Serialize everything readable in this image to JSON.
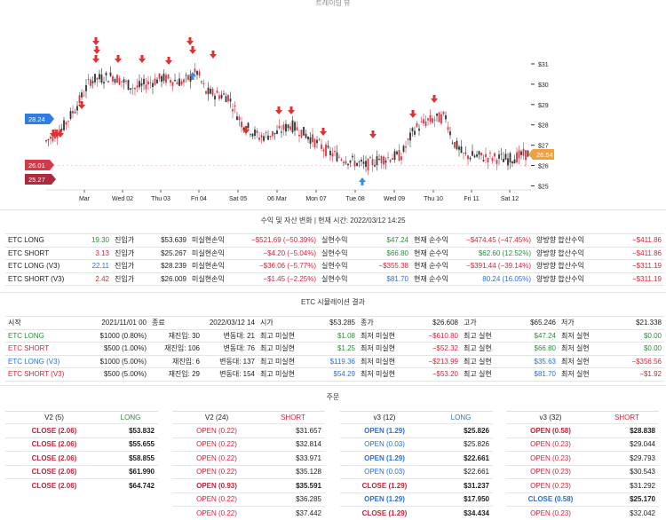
{
  "chart": {
    "title": "트레이딩 뷰",
    "price_ticks": [
      "$31",
      "$30",
      "$29",
      "$28",
      "$27",
      "$26",
      "$25"
    ],
    "date_ticks": [
      "Mar",
      "Wed 02",
      "Thu 03",
      "Fri 04",
      "Sat 05",
      "06 Mar",
      "Mon 07",
      "Tue 08",
      "Wed 09",
      "Thu 10",
      "Fri 11",
      "Sat 12"
    ],
    "badges": [
      {
        "label": "28.24",
        "color": "#2f7de1"
      },
      {
        "label": "26.01",
        "color": "#d43a4a"
      },
      {
        "label": "25.27",
        "color": "#b02a3e"
      },
      {
        "label": "26.54",
        "color": "#f0a040"
      }
    ],
    "up_color": "#333333",
    "down_color": "#d43a4a",
    "sell_marker_color": "#e03131",
    "buy_marker_color": "#3b8fe0"
  },
  "pnl": {
    "title": "수익 및 자산 변화 | 현재 시간: 2022/03/12 14:25",
    "rows": [
      {
        "name": "ETC LONG",
        "qty": "19.30",
        "qty_color": "green",
        "entry_label": "진입가",
        "entry": "$53.639",
        "unreal_label": "미실현손익",
        "unreal": "−$521.69 (−50.39%)",
        "unreal_color": "red",
        "real_label": "실현수익",
        "real": "$47.24",
        "real_color": "green",
        "net_label": "현재 순수익",
        "net": "−$474.45 (−47.45%)",
        "net_color": "red",
        "both_label": "양방향 합산수익",
        "both": "−$411.86",
        "both_color": "red"
      },
      {
        "name": "ETC SHORT",
        "qty": "3.13",
        "qty_color": "red",
        "entry_label": "진입가",
        "entry": "$25.267",
        "unreal_label": "미실현손익",
        "unreal": "−$4.20 (−5.04%)",
        "unreal_color": "red",
        "real_label": "실현수익",
        "real": "$66.80",
        "real_color": "green",
        "net_label": "현재 순수익",
        "net": "$62.60 (12.52%)",
        "net_color": "green",
        "both_label": "양방향 합산수익",
        "both": "−$411.86",
        "both_color": "red"
      },
      {
        "name": "ETC LONG (V3)",
        "qty": "22.11",
        "qty_color": "blue",
        "entry_label": "진입가",
        "entry": "$28.239",
        "unreal_label": "미실현손익",
        "unreal": "−$36.06 (−5.77%)",
        "unreal_color": "red",
        "real_label": "실현수익",
        "real": "−$355.38",
        "real_color": "red",
        "net_label": "현재 순수익",
        "net": "−$391.44 (−39.14%)",
        "net_color": "red",
        "both_label": "양방향 합산수익",
        "both": "−$311.19",
        "both_color": "red"
      },
      {
        "name": "ETC SHORT (V3)",
        "qty": "2.42",
        "qty_color": "red",
        "entry_label": "진입가",
        "entry": "$26.009",
        "unreal_label": "미실현손익",
        "unreal": "−$1.45 (−2.25%)",
        "unreal_color": "red",
        "real_label": "실현수익",
        "real": "$81.70",
        "real_color": "blue",
        "net_label": "현재 순수익",
        "net": "80.24 (16.05%)",
        "net_color": "blue",
        "both_label": "양방향 합산수익",
        "both": "−$311.19",
        "both_color": "red"
      }
    ]
  },
  "sim": {
    "title": "ETC 시뮬레이션 결과",
    "header": {
      "start_label": "시작",
      "start": "2021/11/01 00",
      "end_label": "종료",
      "end": "2022/03/12 14",
      "open_label": "시가",
      "open": "$53.285",
      "close_label": "종가",
      "close": "$26.608",
      "high_label": "고가",
      "high": "$65.246",
      "low_label": "저가",
      "low": "$21.338"
    },
    "rows": [
      {
        "name": "ETC LONG",
        "name_color": "green",
        "budget": "$1000 (0.80%)",
        "reentry": "재진입: 30",
        "change": "변동대: 21",
        "max_unreal_label": "최고 미실현",
        "max_unreal": "$1.08",
        "max_unreal_color": "green",
        "min_unreal_label": "최저 미실현",
        "min_unreal": "−$610.80",
        "min_unreal_color": "red",
        "max_real_label": "최고 실현",
        "max_real": "$47.24",
        "max_real_color": "green",
        "min_real_label": "최저 실현",
        "min_real": "$0.00",
        "min_real_color": "green"
      },
      {
        "name": "ETC SHORT",
        "name_color": "red",
        "budget": "$500 (1.00%)",
        "reentry": "재진입: 106",
        "change": "변동대: 76",
        "max_unreal_label": "최고 미실현",
        "max_unreal": "$1.25",
        "max_unreal_color": "green",
        "min_unreal_label": "최저 미실현",
        "min_unreal": "−$52.32",
        "min_unreal_color": "red",
        "max_real_label": "최고 실현",
        "max_real": "$66.80",
        "max_real_color": "green",
        "min_real_label": "최저 실현",
        "min_real": "$0.00",
        "min_real_color": "green"
      },
      {
        "name": "ETC LONG (V3)",
        "name_color": "blue",
        "budget": "$1000 (5.00%)",
        "reentry": "재진입: 6",
        "change": "변동대: 137",
        "max_unreal_label": "최고 미실현",
        "max_unreal": "$119.36",
        "max_unreal_color": "blue",
        "min_unreal_label": "최저 미실현",
        "min_unreal": "−$213.99",
        "min_unreal_color": "red",
        "max_real_label": "최고 실현",
        "max_real": "$35.63",
        "max_real_color": "blue",
        "min_real_label": "최저 실현",
        "min_real": "−$356.56",
        "min_real_color": "red"
      },
      {
        "name": "ETC SHORT (V3)",
        "name_color": "red",
        "budget": "$500 (5.00%)",
        "reentry": "재진입: 29",
        "change": "변동대: 154",
        "max_unreal_label": "최고 미실현",
        "max_unreal": "$54.29",
        "max_unreal_color": "blue",
        "min_unreal_label": "최저 미실현",
        "min_unreal": "−$53.20",
        "min_unreal_color": "red",
        "max_real_label": "최고 실현",
        "max_real": "$81.70",
        "max_real_color": "blue",
        "min_real_label": "최저 실현",
        "min_real": "−$1.92",
        "min_real_color": "red"
      }
    ]
  },
  "orders": {
    "title": "주문",
    "tables": [
      {
        "version": "V2 (5)",
        "side": "LONG",
        "side_color": "green",
        "rows": [
          {
            "action": "CLOSE (2.06)",
            "action_color": "darkred",
            "bold": true,
            "price": "$53.832",
            "price_bold": true
          },
          {
            "action": "CLOSE (2.06)",
            "action_color": "darkred",
            "bold": true,
            "price": "$55.655",
            "price_bold": true
          },
          {
            "action": "CLOSE (2.06)",
            "action_color": "darkred",
            "bold": true,
            "price": "$58.855",
            "price_bold": true
          },
          {
            "action": "CLOSE (2.06)",
            "action_color": "darkred",
            "bold": true,
            "price": "$61.990",
            "price_bold": true
          },
          {
            "action": "CLOSE (2.06)",
            "action_color": "darkred",
            "bold": true,
            "price": "$64.742",
            "price_bold": true
          }
        ]
      },
      {
        "version": "V2 (24)",
        "side": "SHORT",
        "side_color": "red",
        "rows": [
          {
            "action": "OPEN (0.22)",
            "action_color": "red",
            "bold": false,
            "price": "$31.657",
            "price_bold": false
          },
          {
            "action": "OPEN (0.22)",
            "action_color": "red",
            "bold": false,
            "price": "$32.814",
            "price_bold": false
          },
          {
            "action": "OPEN (0.22)",
            "action_color": "red",
            "bold": false,
            "price": "$33.971",
            "price_bold": false
          },
          {
            "action": "OPEN (0.22)",
            "action_color": "red",
            "bold": false,
            "price": "$35.128",
            "price_bold": false
          },
          {
            "action": "OPEN (0.93)",
            "action_color": "darkred",
            "bold": true,
            "price": "$35.591",
            "price_bold": true
          },
          {
            "action": "OPEN (0.22)",
            "action_color": "red",
            "bold": false,
            "price": "$36.285",
            "price_bold": false
          },
          {
            "action": "OPEN (0.22)",
            "action_color": "red",
            "bold": false,
            "price": "$37.442",
            "price_bold": false
          }
        ]
      },
      {
        "version": "v3 (12)",
        "side": "LONG",
        "side_color": "blue",
        "rows": [
          {
            "action": "OPEN (1.29)",
            "action_color": "blue",
            "bold": true,
            "price": "$25.826",
            "price_bold": true
          },
          {
            "action": "OPEN (0.03)",
            "action_color": "blue",
            "bold": false,
            "price": "$25.826",
            "price_bold": false
          },
          {
            "action": "OPEN (1.29)",
            "action_color": "blue",
            "bold": true,
            "price": "$22.661",
            "price_bold": true
          },
          {
            "action": "OPEN (0.03)",
            "action_color": "blue",
            "bold": false,
            "price": "$22.661",
            "price_bold": false
          },
          {
            "action": "CLOSE (1.29)",
            "action_color": "darkred",
            "bold": true,
            "price": "$31.237",
            "price_bold": true
          },
          {
            "action": "OPEN (1.29)",
            "action_color": "blue",
            "bold": true,
            "price": "$17.950",
            "price_bold": true
          },
          {
            "action": "CLOSE (1.29)",
            "action_color": "darkred",
            "bold": true,
            "price": "$34.434",
            "price_bold": true
          }
        ]
      },
      {
        "version": "v3 (32)",
        "side": "SHORT",
        "side_color": "red",
        "rows": [
          {
            "action": "OPEN (0.58)",
            "action_color": "darkred",
            "bold": true,
            "price": "$28.838",
            "price_bold": true
          },
          {
            "action": "OPEN (0.23)",
            "action_color": "red",
            "bold": false,
            "price": "$29.044",
            "price_bold": false
          },
          {
            "action": "OPEN (0.23)",
            "action_color": "red",
            "bold": false,
            "price": "$29.793",
            "price_bold": false
          },
          {
            "action": "OPEN (0.23)",
            "action_color": "red",
            "bold": false,
            "price": "$30.543",
            "price_bold": false
          },
          {
            "action": "OPEN (0.23)",
            "action_color": "red",
            "bold": false,
            "price": "$31.292",
            "price_bold": false
          },
          {
            "action": "CLOSE (0.58)",
            "action_color": "blue",
            "bold": true,
            "price": "$25.170",
            "price_bold": true
          },
          {
            "action": "OPEN (0.23)",
            "action_color": "red",
            "bold": false,
            "price": "$32.042",
            "price_bold": false
          }
        ]
      }
    ]
  }
}
